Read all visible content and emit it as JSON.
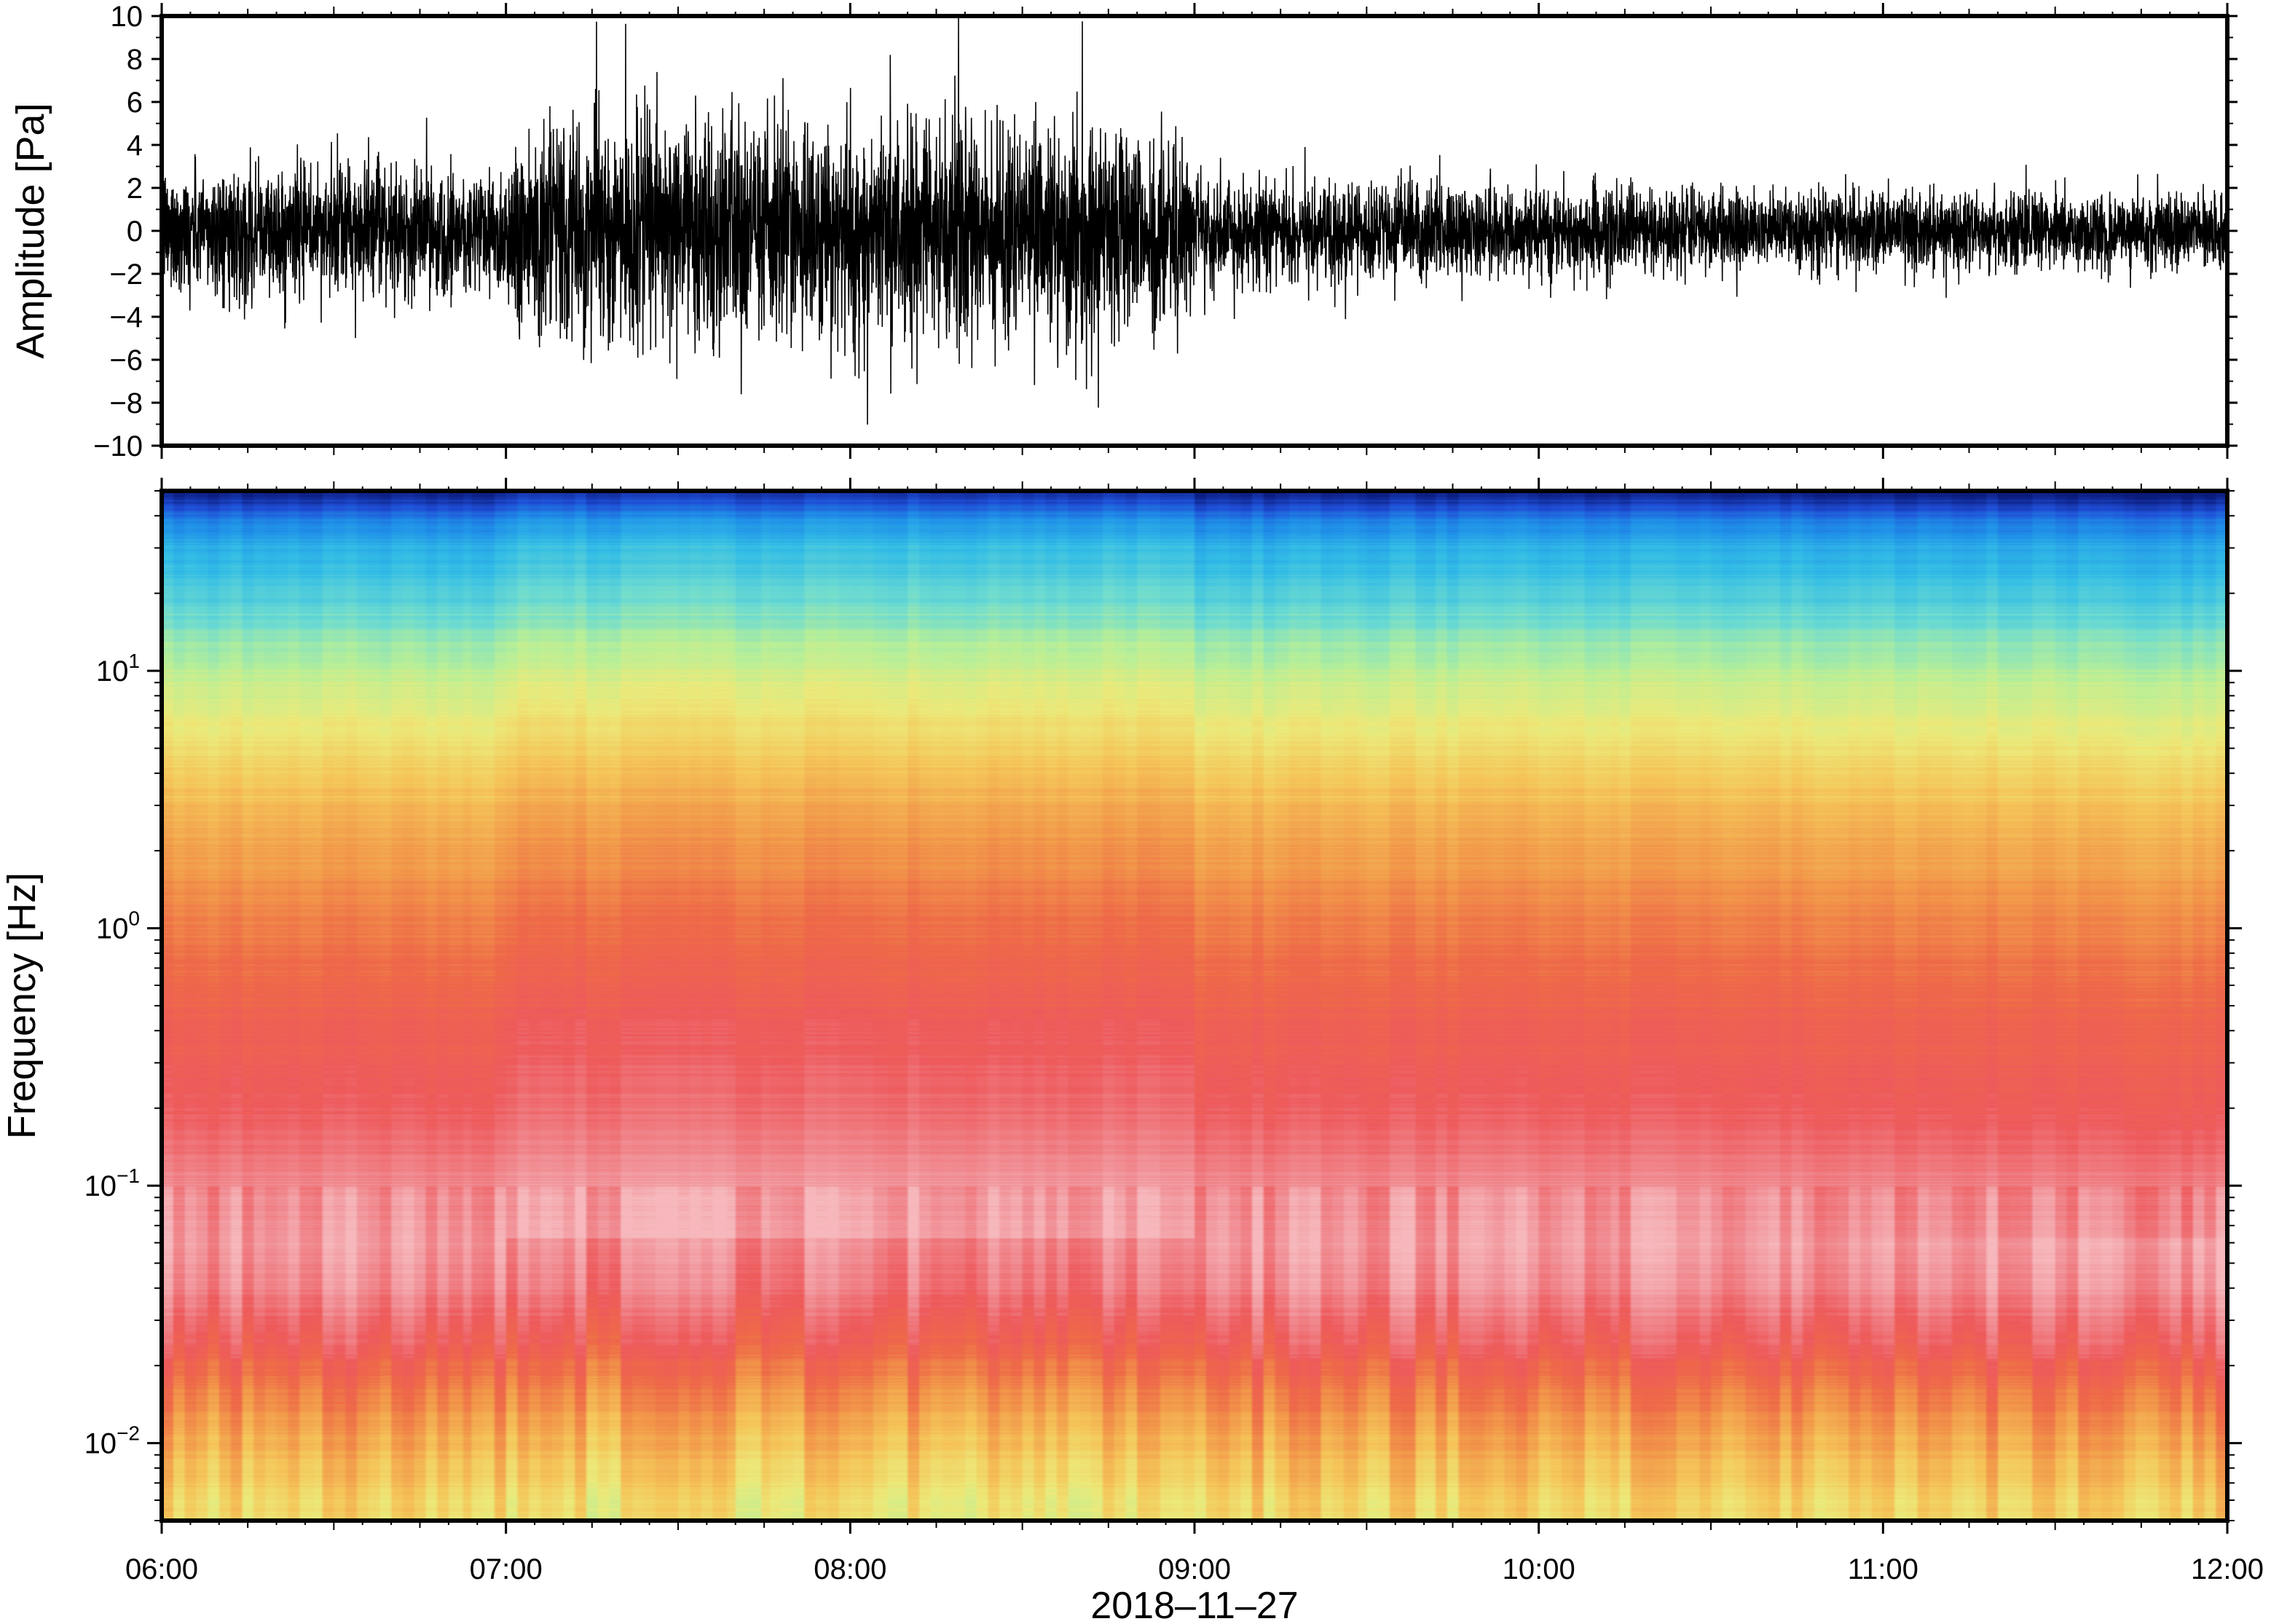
{
  "chart_data": [
    {
      "type": "line",
      "title": "",
      "ylabel": "Amplitude [Pa]",
      "xlabel": "",
      "xlim": [
        "06:00",
        "12:00"
      ],
      "ylim": [
        -10,
        10
      ],
      "y_ticks": [
        10,
        8,
        6,
        4,
        2,
        0,
        -2,
        -4,
        -6,
        -8,
        -10
      ],
      "y_tick_labels": [
        "10",
        "8",
        "6",
        "4",
        "2",
        "0",
        "−2",
        "−4",
        "−6",
        "−8",
        "−10"
      ],
      "grid": false,
      "line_color": "#000000",
      "envelope": {
        "time_hours": [
          6.0,
          6.5,
          7.0,
          7.01,
          7.5,
          8.0,
          8.5,
          8.99,
          9.0,
          9.5,
          10.0,
          10.5,
          11.0,
          11.5,
          12.0
        ],
        "typical_peak_pa": [
          3.4,
          3.6,
          3.4,
          5.6,
          6.2,
          6.0,
          6.0,
          5.4,
          2.8,
          2.7,
          2.4,
          2.3,
          2.2,
          2.1,
          2.0
        ]
      }
    },
    {
      "type": "heatmap",
      "title": "",
      "ylabel": "Frequency [Hz]",
      "xlabel": "2018–11–27",
      "xlim": [
        "06:00",
        "12:00"
      ],
      "ylim_hz": [
        0.005,
        50
      ],
      "y_scale": "log",
      "x_ticks": [
        "06:00",
        "07:00",
        "08:00",
        "09:00",
        "10:00",
        "11:00",
        "12:00"
      ],
      "y_ticks": [
        {
          "value": 10,
          "base": "10",
          "exp": "1"
        },
        {
          "value": 1,
          "base": "10",
          "exp": "0"
        },
        {
          "value": 0.1,
          "base": "10",
          "exp": "−1"
        },
        {
          "value": 0.01,
          "base": "10",
          "exp": "−2"
        }
      ],
      "colormap": [
        "#0a1a7a",
        "#1f4ed6",
        "#1f8fe8",
        "#33bde6",
        "#6fdcd0",
        "#b8ef98",
        "#ecea7a",
        "#f5c65a",
        "#f29a4a",
        "#ee6a48",
        "#ee5a5c",
        "#f08a90",
        "#f6b8bc"
      ],
      "spectral_profile": {
        "log10_freq": [
          1.7,
          1.6,
          1.5,
          1.3,
          1.1,
          1.0,
          0.7,
          0.4,
          0.0,
          -0.4,
          -0.8,
          -1.0,
          -1.2,
          -1.4,
          -1.6,
          -1.8,
          -2.0,
          -2.3
        ],
        "color_index": [
          0.0,
          1.6,
          2.6,
          3.5,
          4.6,
          5.2,
          6.4,
          7.6,
          8.6,
          9.6,
          10.3,
          11.0,
          11.4,
          11.0,
          10.0,
          8.6,
          7.6,
          6.4
        ]
      }
    }
  ]
}
